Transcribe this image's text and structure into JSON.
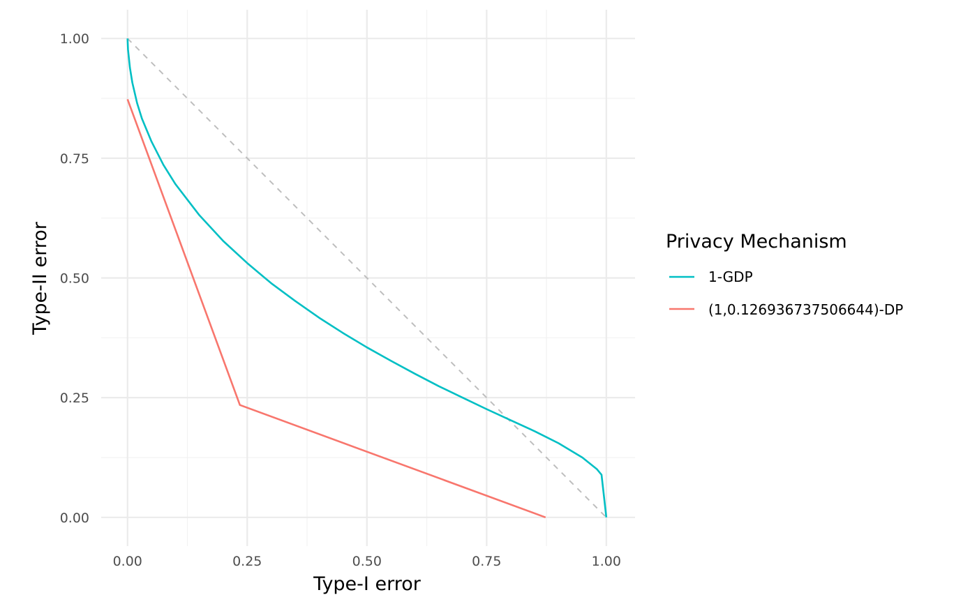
{
  "chart_data": {
    "type": "line",
    "xlabel": "Type-I error",
    "ylabel": "Type-II error",
    "xlim": [
      -0.055,
      1.06
    ],
    "ylim": [
      -0.06,
      1.06
    ],
    "x_ticks": [
      0.0,
      0.25,
      0.5,
      0.75,
      1.0
    ],
    "x_tick_labels": [
      "0.00",
      "0.25",
      "0.50",
      "0.75",
      "1.00"
    ],
    "y_ticks": [
      0.0,
      0.25,
      0.5,
      0.75,
      1.0
    ],
    "y_tick_labels": [
      "0.00",
      "0.25",
      "0.50",
      "0.75",
      "1.00"
    ],
    "grid": true,
    "legend": {
      "title": "Privacy Mechanism",
      "position": "right",
      "entries": [
        {
          "label": "1-GDP",
          "color": "#00BFC4"
        },
        {
          "label": "(1,0.126936737506644)-DP",
          "color": "#F8766D"
        }
      ]
    },
    "series": [
      {
        "name": "1-GDP",
        "color": "#00BFC4",
        "x": [
          0,
          0.001,
          0.005,
          0.01,
          0.02,
          0.03,
          0.05,
          0.075,
          0.1,
          0.15,
          0.2,
          0.25,
          0.3,
          0.35,
          0.4,
          0.45,
          0.5,
          0.55,
          0.6,
          0.65,
          0.7,
          0.75,
          0.8,
          0.85,
          0.9,
          0.95,
          0.98,
          0.99,
          1.0
        ],
        "y": [
          1.0,
          0.977,
          0.939,
          0.908,
          0.865,
          0.833,
          0.785,
          0.736,
          0.696,
          0.631,
          0.577,
          0.531,
          0.489,
          0.452,
          0.417,
          0.385,
          0.355,
          0.327,
          0.3,
          0.274,
          0.25,
          0.226,
          0.203,
          0.18,
          0.155,
          0.125,
          0.101,
          0.089,
          0.0
        ]
      },
      {
        "name": "(1,0.126936737506644)-DP",
        "color": "#F8766D",
        "x": [
          0,
          0.2347,
          0.8731
        ],
        "y": [
          0.8731,
          0.2347,
          0.0
        ]
      }
    ],
    "reference_line": {
      "x": [
        0,
        1
      ],
      "y": [
        1,
        0
      ],
      "color": "#bebebe",
      "style": "dashed"
    }
  }
}
